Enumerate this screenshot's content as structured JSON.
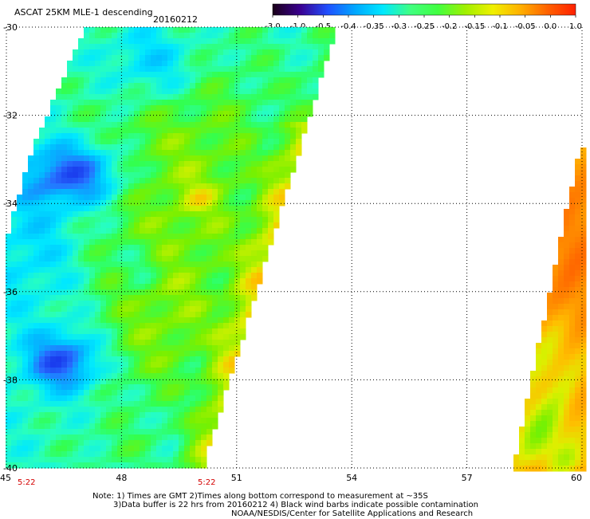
{
  "header": {
    "title": "ASCAT 25KM MLE-1 descending",
    "date": "20160212"
  },
  "colorbar": {
    "labels": [
      "-3.0",
      "-1.0",
      "-0.5",
      "-0.4",
      "-0.35",
      "-0.3",
      "-0.25",
      "-0.2",
      "-0.15",
      "-0.1",
      "-0.05",
      "0.0",
      "1.0"
    ],
    "colors": [
      "#1a0018",
      "#3a0090",
      "#2050ff",
      "#00a8ff",
      "#00e8ff",
      "#40ff80",
      "#40ff40",
      "#a0f000",
      "#f0f000",
      "#ffb000",
      "#ff6000",
      "#ff2000"
    ]
  },
  "map": {
    "lon_range": [
      45,
      60
    ],
    "lat_range": [
      -40,
      -30
    ],
    "lon_ticks": [
      "45",
      "48",
      "51",
      "54",
      "57",
      "60"
    ],
    "lat_ticks": [
      "-30",
      "-32",
      "-34",
      "-36",
      "-38",
      "-40"
    ],
    "grid": true
  },
  "time_labels": [
    "5:22",
    "5:22"
  ],
  "notes": [
    "Note: 1) Times are GMT 2)Times along bottom correspond to measurement at ~35S",
    "3)Data buffer is 22 hrs from 20160212 4) Black wind barbs indicate possible contamination",
    "NOAA/NESDIS/Center for Satellite Applications and Research"
  ]
}
